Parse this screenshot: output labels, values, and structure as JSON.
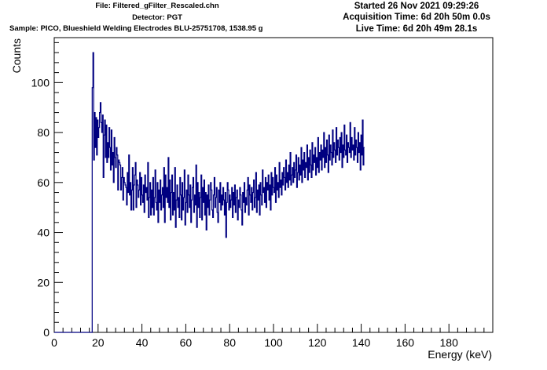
{
  "header": {
    "file": "File: Filtered_gFilter_Rescaled.chn",
    "detector": "Detector: PGT",
    "sample": "Sample: PICO, Blueshield Welding Electrodes BLU-25751708, 1538.95 g",
    "started": "Started 26 Nov 2021 09:29:26",
    "acquisition": "Acquisition Time: 6d 20h 50m 0.0s",
    "live": "Live Time: 6d 20h 49m 28.1s"
  },
  "colors": {
    "series": "#000080",
    "axis": "#000000",
    "background": "#ffffff"
  },
  "chart_data": {
    "type": "line",
    "style": "histogram-step",
    "title": "",
    "xlabel": "Energy (keV)",
    "ylabel": "Counts",
    "xlim": [
      0,
      200
    ],
    "ylim": [
      0,
      118
    ],
    "xticks": [
      0,
      20,
      40,
      60,
      80,
      100,
      120,
      140,
      160,
      180
    ],
    "yticks": [
      0,
      20,
      40,
      60,
      80,
      100
    ],
    "grid": false,
    "legend": "none",
    "series": [
      {
        "bin_width_keV": 0.333,
        "x_start_keV": 0.0,
        "counts": [
          0,
          0,
          0,
          0,
          0,
          0,
          0,
          0,
          0,
          0,
          0,
          0,
          0,
          0,
          0,
          0,
          0,
          0,
          0,
          0,
          0,
          0,
          0,
          0,
          0,
          0,
          0,
          0,
          0,
          0,
          0,
          0,
          0,
          0,
          0,
          0,
          0,
          0,
          0,
          0,
          0,
          0,
          0,
          0,
          0,
          0,
          0,
          0,
          0,
          0,
          0,
          0,
          98,
          112,
          69,
          88,
          74,
          86,
          71,
          85,
          78,
          82,
          88,
          92,
          84,
          80,
          87,
          62,
          79,
          85,
          70,
          83,
          68,
          76,
          70,
          82,
          74,
          65,
          81,
          67,
          72,
          60,
          78,
          70,
          66,
          74,
          71,
          57,
          69,
          68,
          67,
          57,
          62,
          66,
          53,
          62,
          60,
          59,
          58,
          51,
          64,
          56,
          71,
          55,
          60,
          49,
          57,
          66,
          49,
          59,
          63,
          68,
          50,
          61,
          59,
          54,
          57,
          64,
          51,
          62,
          55,
          52,
          59,
          48,
          63,
          56,
          58,
          53,
          68,
          46,
          54,
          60,
          47,
          57,
          50,
          62,
          47,
          54,
          65,
          52,
          49,
          60,
          44,
          57,
          52,
          61,
          49,
          55,
          58,
          50,
          66,
          44,
          63,
          54,
          58,
          52,
          70,
          50,
          61,
          45,
          56,
          63,
          47,
          56,
          49,
          66,
          42,
          53,
          59,
          50,
          54,
          46,
          62,
          55,
          45,
          60,
          49,
          54,
          65,
          43,
          52,
          57,
          48,
          63,
          55,
          50,
          59,
          44,
          53,
          58,
          62,
          48,
          55,
          51,
          67,
          42,
          60,
          50,
          56,
          46,
          54,
          63,
          45,
          58,
          52,
          61,
          47,
          56,
          41,
          55,
          50,
          59,
          47,
          53,
          60,
          57,
          49,
          46,
          55,
          62,
          50,
          54,
          58,
          48,
          44,
          57,
          52,
          60,
          49,
          55,
          51,
          58,
          53,
          47,
          56,
          38,
          52,
          60,
          57,
          49,
          55,
          50,
          53,
          58,
          46,
          56,
          51,
          59,
          48,
          54,
          57,
          45,
          53,
          50,
          58,
          55,
          49,
          43,
          56,
          52,
          60,
          48,
          54,
          51,
          57,
          62,
          47,
          59,
          55,
          52,
          58,
          49,
          56,
          61,
          50,
          54,
          64,
          48,
          57,
          53,
          59,
          47,
          60,
          55,
          51,
          65,
          56,
          58,
          52,
          62,
          50,
          60,
          57,
          63,
          53,
          59,
          49,
          64,
          55,
          62,
          58,
          56,
          66,
          52,
          63,
          57,
          60,
          54,
          68,
          58,
          61,
          55,
          64,
          59,
          66,
          62,
          57,
          69,
          60,
          64,
          58,
          67,
          61,
          72,
          59,
          63,
          66,
          60,
          68,
          62,
          65,
          71,
          58,
          64,
          70,
          61,
          67,
          63,
          74,
          60,
          69,
          65,
          72,
          62,
          68,
          66,
          75,
          61,
          70,
          64,
          73,
          67,
          62,
          76,
          65,
          71,
          68,
          74,
          63,
          70,
          66,
          78,
          64,
          72,
          69,
          75,
          65,
          73,
          70,
          80,
          66,
          74,
          68,
          77,
          71,
          64,
          79,
          69,
          75,
          72,
          67,
          81,
          70,
          76,
          73,
          68,
          82,
          71,
          77,
          74,
          69,
          78,
          72,
          80,
          66,
          75,
          70,
          83,
          73,
          71,
          79,
          68,
          76,
          74,
          72,
          84,
          70,
          78,
          73,
          75,
          69,
          82,
          71,
          77,
          74,
          68,
          80,
          72,
          76,
          65,
          79,
          71,
          85,
          67,
          74
        ]
      }
    ]
  }
}
